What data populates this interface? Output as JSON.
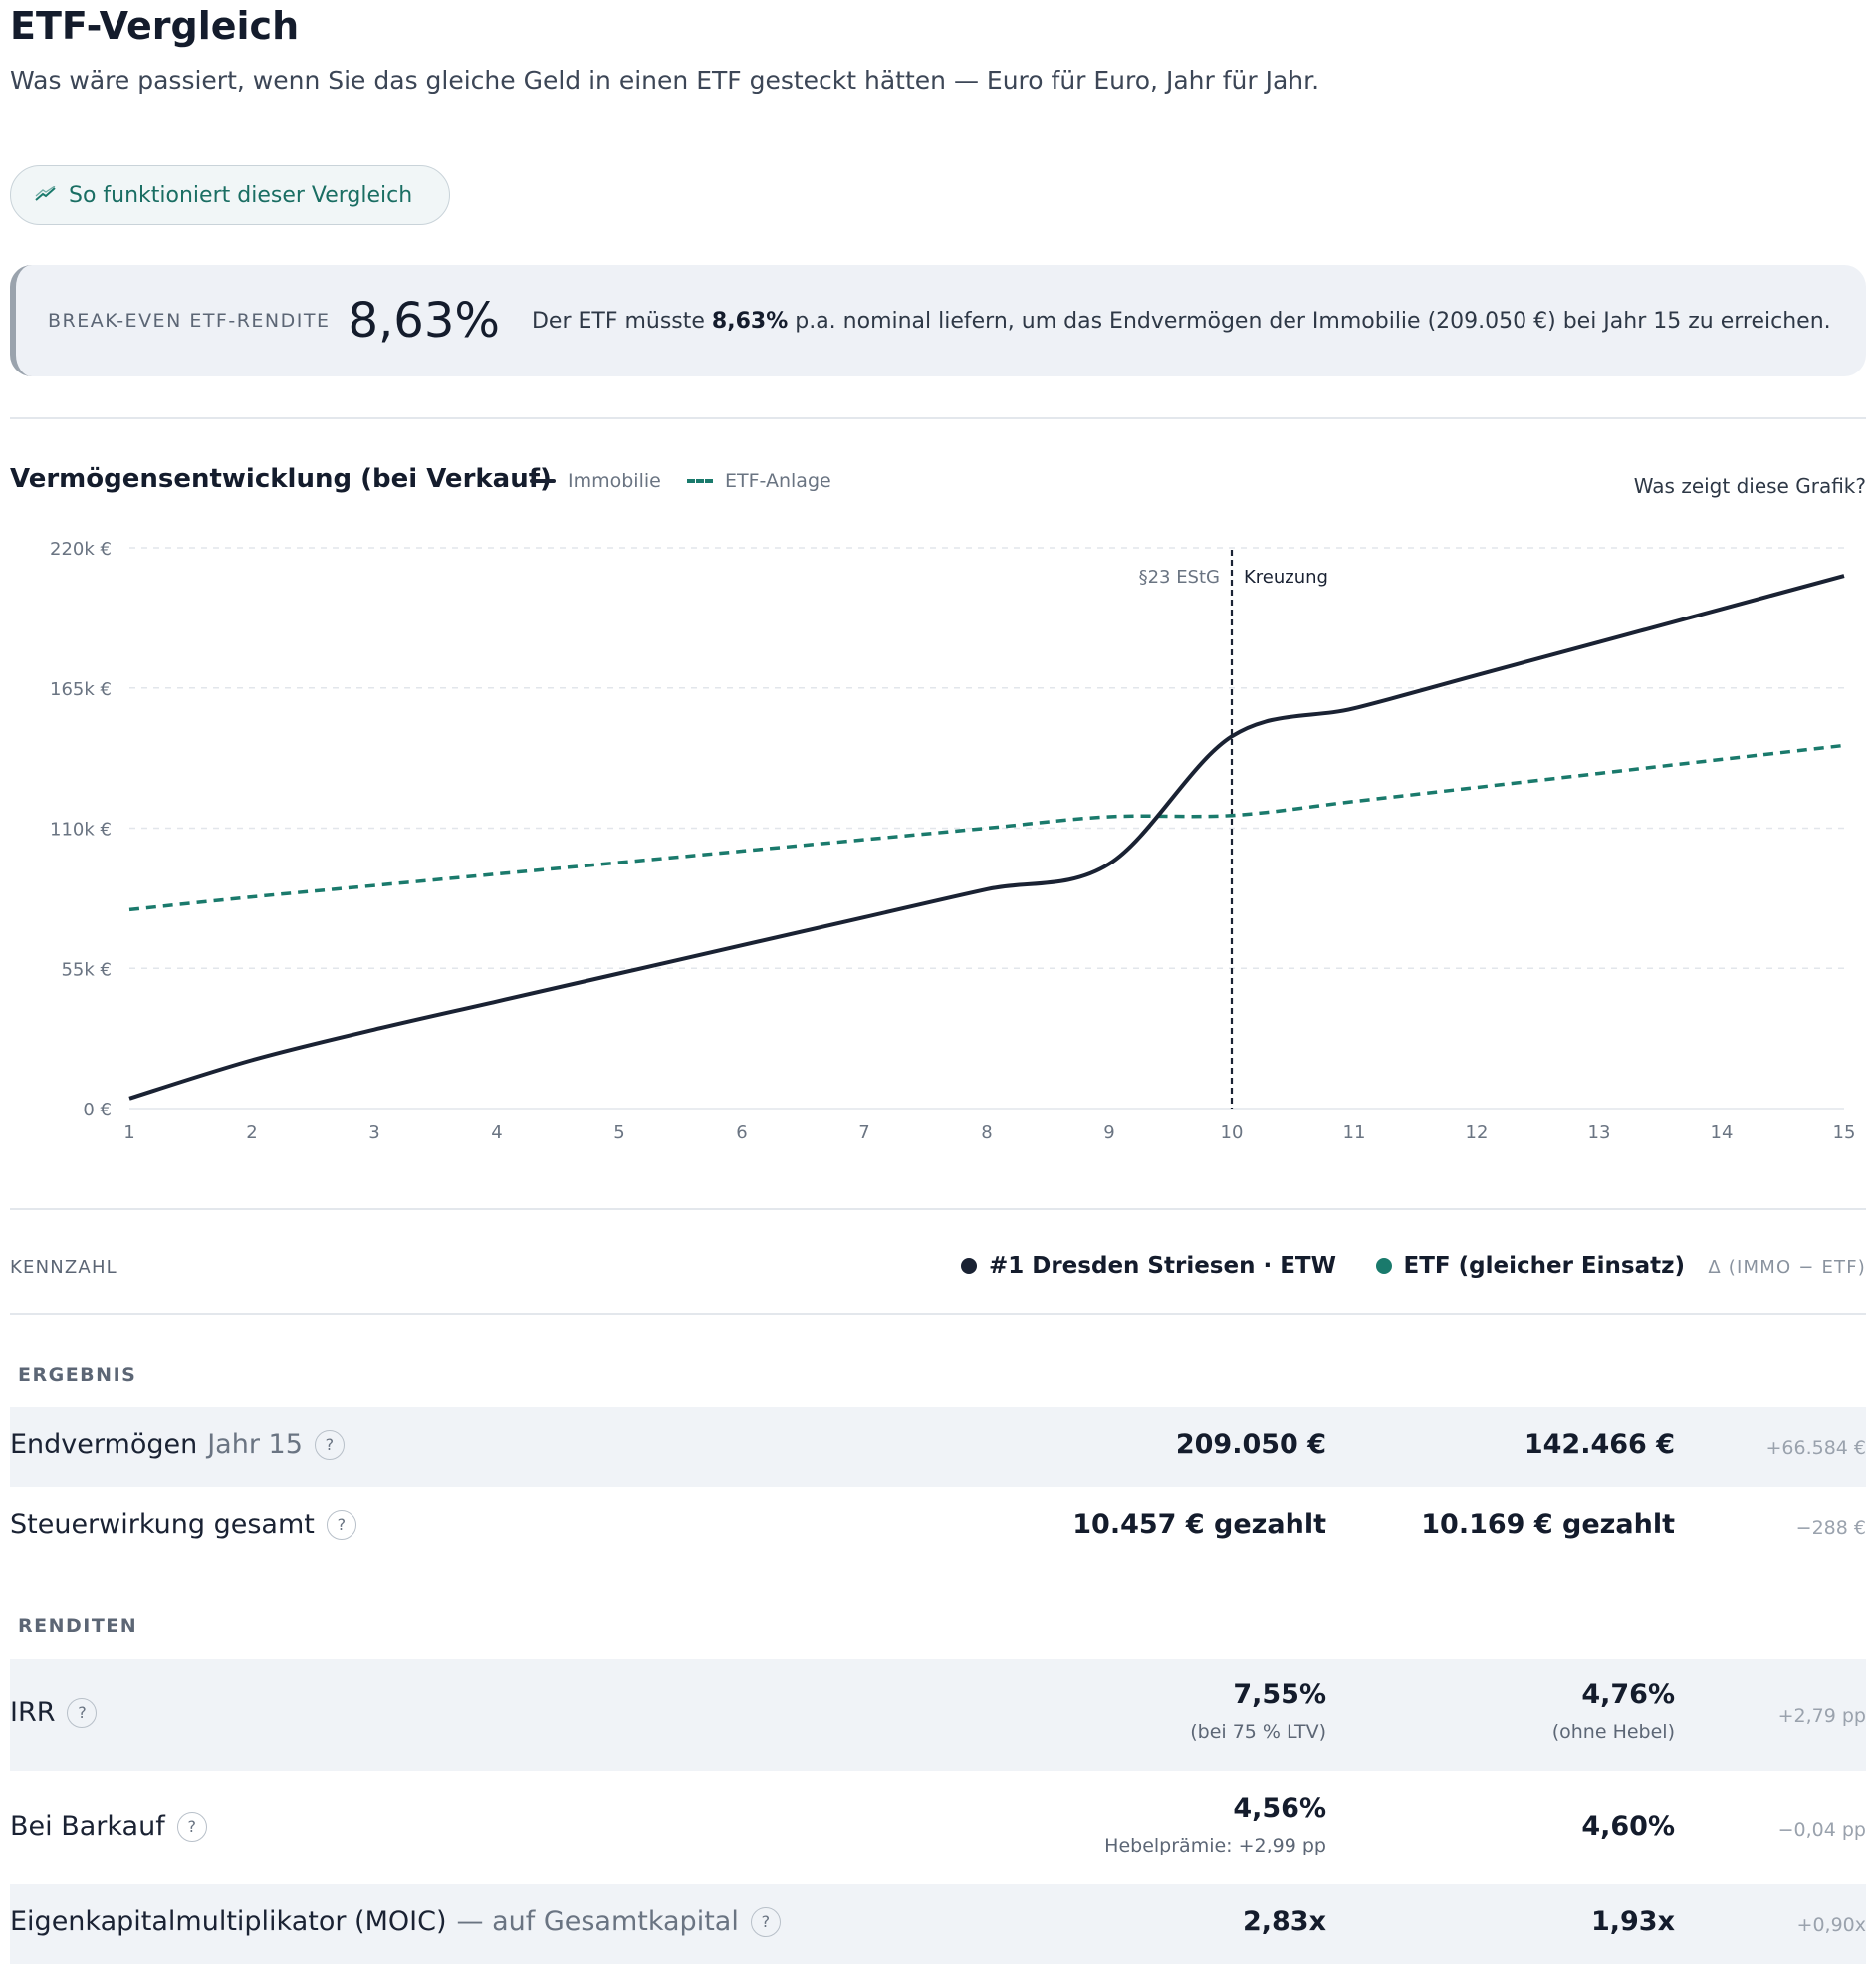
{
  "header": {
    "title": "ETF-Vergleich",
    "subtitle": "Was wäre passiert, wenn Sie das gleiche Geld in einen ETF gesteckt hätten — Euro für Euro, Jahr für Jahr."
  },
  "how_button": {
    "label": "So funktioniert dieser Vergleich",
    "icon": "trend-line-icon"
  },
  "breakeven": {
    "label": "BREAK-EVEN ETF-RENDITE",
    "value": "8,63%",
    "text_pre": "Der ETF müsste ",
    "text_bold": "8,63%",
    "text_post": " p.a. nominal liefern, um das Endvermögen der Immobilie (209.050 €) bei Jahr 15 zu erreichen."
  },
  "chart": {
    "title": "Vermögensentwicklung (bei Verkauf)",
    "help_label": "Was zeigt diese Grafik?"
  },
  "chart_data": {
    "type": "line",
    "x": [
      1,
      2,
      3,
      4,
      5,
      6,
      7,
      8,
      9,
      10,
      11,
      12,
      13,
      14,
      15
    ],
    "series": [
      {
        "name": "Immobilie",
        "style": "solid",
        "color": "#1a2233",
        "values": [
          4000,
          19000,
          31000,
          42000,
          53000,
          64000,
          75000,
          86000,
          96000,
          146000,
          157000,
          170000,
          183000,
          196000,
          209050
        ]
      },
      {
        "name": "ETF-Anlage",
        "style": "dashed",
        "color": "#1a7a6c",
        "values": [
          78000,
          83000,
          87500,
          92000,
          96500,
          101000,
          105500,
          110000,
          114500,
          115000,
          120500,
          126000,
          131500,
          137000,
          142466
        ]
      }
    ],
    "y_ticks": [
      0,
      55000,
      110000,
      165000,
      220000
    ],
    "y_tick_labels": [
      "0 €",
      "55k €",
      "110k €",
      "165k €",
      "220k €"
    ],
    "ylim": [
      0,
      220000
    ],
    "xlim": [
      1,
      15
    ],
    "grid": true,
    "marker": {
      "x": 10,
      "label_left": "§23 EStG",
      "label_right": "Kreuzung"
    },
    "legend_placement": "top-left"
  },
  "table": {
    "header": {
      "kennzahl": "KENNZAHL",
      "col1": "#1 Dresden Striesen · ETW",
      "col1_color": "#1a2233",
      "col2": "ETF (gleicher Einsatz)",
      "col2_color": "#1a7a6c",
      "delta": "Δ (IMMO − ETF)"
    },
    "sections": {
      "ergebnis": "ERGEBNIS",
      "renditen": "RENDITEN"
    },
    "rows": {
      "endvermoegen": {
        "label": "Endvermögen",
        "label_muted": "Jahr 15",
        "v1": "209.050 €",
        "v2": "142.466 €",
        "delta": "+66.584 €"
      },
      "steuer": {
        "label": "Steuerwirkung gesamt",
        "v1": "10.457 € gezahlt",
        "v2": "10.169 € gezahlt",
        "delta": "−288 €"
      },
      "irr": {
        "label": "IRR",
        "v1": "7,55%",
        "sub1": "(bei 75 % LTV)",
        "v2": "4,76%",
        "sub2": "(ohne Hebel)",
        "delta": "+2,79 pp"
      },
      "barkauf": {
        "label": "Bei Barkauf",
        "v1": "4,56%",
        "sub1": "Hebelprämie: +2,99 pp",
        "v2": "4,60%",
        "delta": "−0,04 pp"
      },
      "moic": {
        "label": "Eigenkapitalmultiplikator (MOIC)",
        "label_muted": "— auf Gesamtkapital",
        "v1": "2,83x",
        "v2": "1,93x",
        "delta": "+0,90x"
      }
    },
    "help_glyph": "?"
  }
}
